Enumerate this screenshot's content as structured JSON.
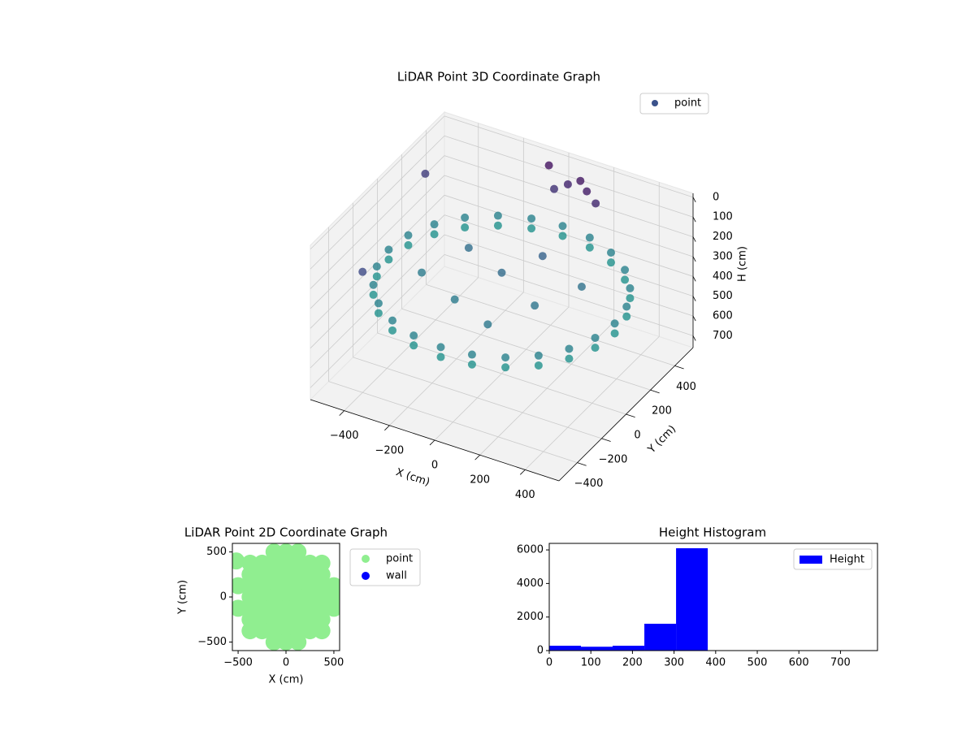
{
  "chart_data": [
    {
      "type": "scatter3d",
      "title": "LiDAR Point 3D Coordinate Graph",
      "xlabel": "X (cm)",
      "ylabel": "Y (cm)",
      "zlabel": "H (cm)",
      "xlim": [
        -550,
        550
      ],
      "ylim": [
        -550,
        550
      ],
      "zlim": [
        -20,
        760
      ],
      "z_inverted": true,
      "xticks": [
        {
          "value": -400,
          "label": "−400"
        },
        {
          "value": -200,
          "label": "−200"
        },
        0,
        200,
        400
      ],
      "yticks": [
        {
          "value": -400,
          "label": "−400"
        },
        {
          "value": -200,
          "label": "−200"
        },
        0,
        200,
        400
      ],
      "zticks": [
        0,
        100,
        200,
        300,
        400,
        500,
        600,
        700
      ],
      "colormap": "viridis",
      "legend": "upper right",
      "grid": true,
      "series": [
        {
          "name": "point",
          "color": "#3b528b",
          "x": [
            500,
            483,
            433,
            354,
            250,
            129,
            0,
            -129,
            -250,
            -354,
            -433,
            -483,
            -500,
            -483,
            -433,
            -354,
            -250,
            -129,
            0,
            129,
            250,
            354,
            433,
            483,
            500,
            483,
            433,
            354,
            250,
            129,
            0,
            -129,
            -250,
            -354,
            -433,
            -483,
            -500,
            -483,
            -433,
            -354,
            -250,
            -129,
            0,
            129,
            250,
            354,
            433,
            483,
            200,
            -100,
            0,
            100,
            -200,
            300,
            -300,
            100,
            50,
            150,
            0,
            100,
            200,
            -500,
            -400,
            -50
          ],
          "y": [
            0,
            129,
            250,
            354,
            433,
            483,
            500,
            483,
            433,
            354,
            250,
            129,
            0,
            -129,
            -250,
            -354,
            -433,
            -483,
            -500,
            -483,
            -433,
            -354,
            -250,
            -129,
            0,
            129,
            250,
            354,
            433,
            483,
            500,
            483,
            433,
            354,
            250,
            129,
            0,
            -129,
            -250,
            -354,
            -433,
            -483,
            -500,
            -483,
            -433,
            -354,
            -250,
            -129,
            -100,
            -200,
            0,
            150,
            100,
            100,
            -100,
            -300,
            450,
            420,
            430,
            460,
            400,
            300,
            -400,
            480
          ],
          "z": [
            320,
            320,
            320,
            320,
            320,
            320,
            320,
            320,
            320,
            320,
            320,
            320,
            320,
            320,
            320,
            320,
            320,
            320,
            320,
            320,
            320,
            320,
            320,
            320,
            370,
            370,
            370,
            370,
            370,
            370,
            370,
            370,
            370,
            370,
            370,
            370,
            370,
            370,
            370,
            370,
            370,
            370,
            370,
            370,
            370,
            370,
            370,
            370,
            280,
            300,
            250,
            220,
            260,
            270,
            300,
            290,
            60,
            40,
            90,
            30,
            70,
            120,
            150,
            20
          ]
        }
      ]
    },
    {
      "type": "scatter",
      "title": "LiDAR Point 2D Coordinate Graph",
      "xlabel": "X (cm)",
      "ylabel": "Y (cm)",
      "xlim": [
        -560,
        560
      ],
      "ylim": [
        -595,
        595
      ],
      "xticks": [
        {
          "value": -500,
          "label": "−500"
        },
        0,
        500
      ],
      "yticks": [
        {
          "value": -500,
          "label": "−500"
        },
        0,
        500
      ],
      "legend": "outside right",
      "series": [
        {
          "name": "point",
          "color": "#90ee90",
          "x": [
            -125,
            0,
            125,
            -375,
            -250,
            -125,
            0,
            125,
            250,
            375,
            -375,
            -250,
            -125,
            0,
            125,
            250,
            375,
            -500,
            -375,
            -250,
            -125,
            0,
            125,
            250,
            375,
            500,
            -375,
            -250,
            -125,
            0,
            125,
            250,
            375,
            500,
            -500,
            -375,
            -250,
            -125,
            0,
            125,
            250,
            375,
            500,
            -375,
            -250,
            -125,
            0,
            125,
            250,
            375,
            -375,
            -250,
            -125,
            0,
            125,
            250,
            375,
            -125,
            0,
            125,
            -520
          ],
          "y": [
            500,
            500,
            500,
            375,
            375,
            375,
            375,
            375,
            375,
            375,
            250,
            250,
            250,
            250,
            250,
            250,
            250,
            125,
            125,
            125,
            125,
            125,
            125,
            125,
            125,
            125,
            0,
            0,
            0,
            0,
            0,
            0,
            0,
            0,
            -125,
            -125,
            -125,
            -125,
            -125,
            -125,
            -125,
            -125,
            -125,
            -250,
            -250,
            -250,
            -250,
            -250,
            -250,
            -250,
            -375,
            -375,
            -375,
            -375,
            -375,
            -375,
            -375,
            -500,
            -500,
            -500,
            400
          ]
        },
        {
          "name": "wall",
          "color": "#0000ff",
          "x": [],
          "y": []
        }
      ]
    },
    {
      "type": "histogram",
      "title": "Height Histogram",
      "name": "Height",
      "color": "#0000ff",
      "bins": [
        0,
        76.2,
        152.4,
        228.6,
        304.8,
        381,
        457.2,
        533.4,
        609.6,
        685.8,
        762
      ],
      "values": [
        290,
        230,
        290,
        1600,
        6100,
        0,
        0,
        0,
        0,
        0
      ],
      "xlim": [
        0,
        789
      ],
      "ylim": [
        0,
        6390
      ],
      "xticks": [
        0,
        100,
        200,
        300,
        400,
        500,
        600,
        700
      ],
      "yticks": [
        0,
        2000,
        4000,
        6000
      ],
      "legend": "upper right"
    }
  ]
}
